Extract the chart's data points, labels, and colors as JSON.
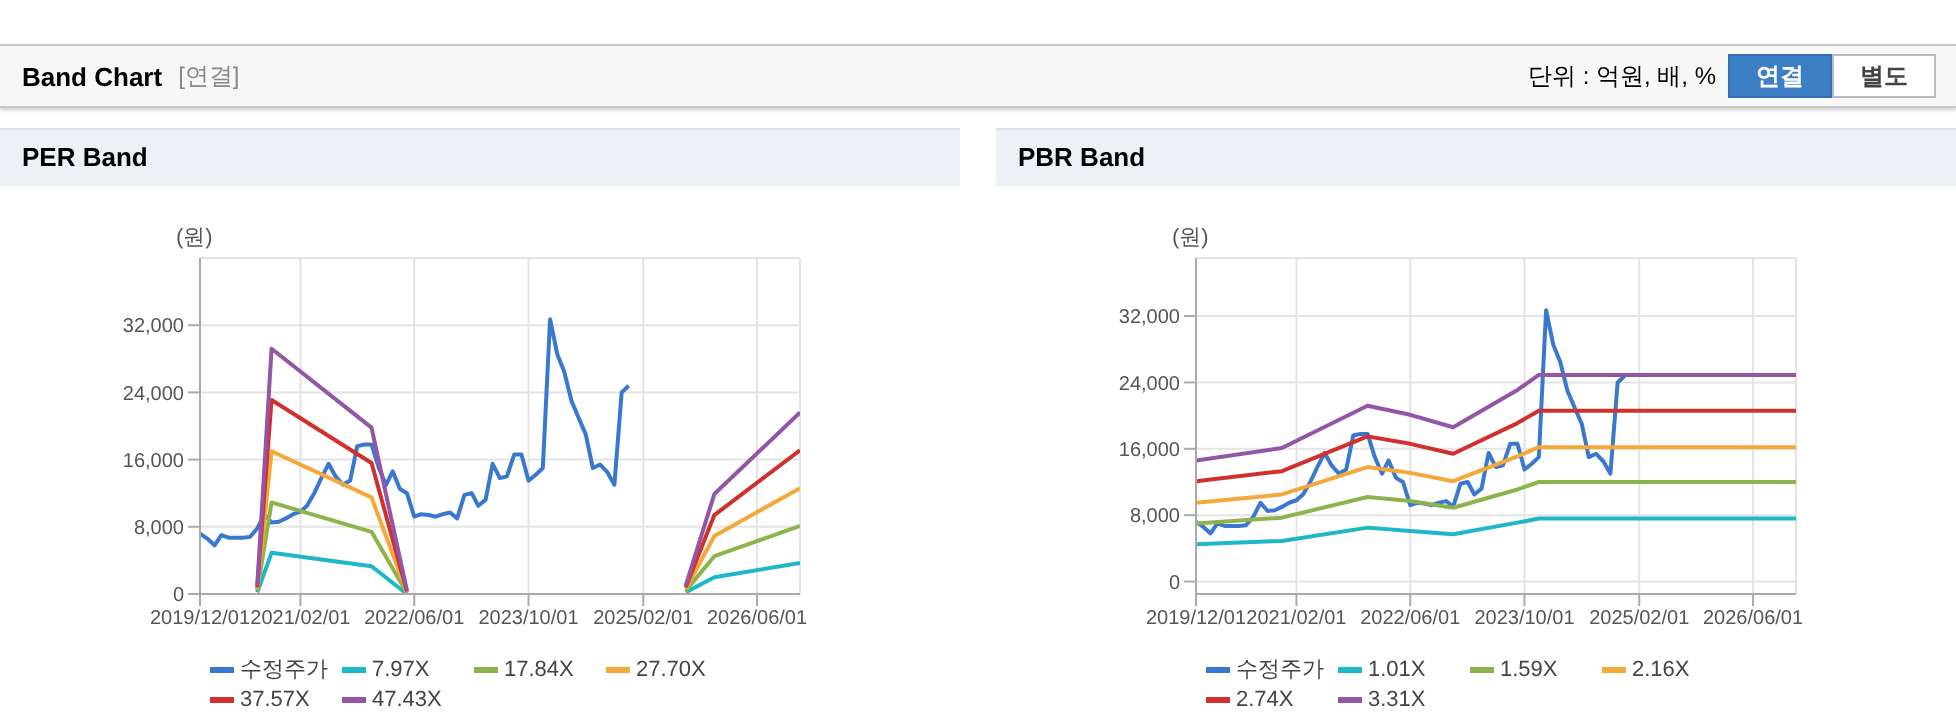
{
  "chart_data": [
    {
      "type": "other",
      "title": "Band Chart",
      "annotations": [
        "[연결]",
        "단위 : 억원, 배, %",
        "연결",
        "별도"
      ]
    },
    {
      "type": "line",
      "title": "PER Band",
      "ylabel": "(원)",
      "xlim": [
        "2019-12-01",
        "2026-12-01"
      ],
      "xticks": [
        {
          "value": "2019-12-01",
          "label": "2019/12/01"
        },
        {
          "value": "2021-02-01",
          "label": "2021/02/01"
        },
        {
          "value": "2022-06-01",
          "label": "2022/06/01"
        },
        {
          "value": "2023-10-01",
          "label": "2023/10/01"
        },
        {
          "value": "2025-02-01",
          "label": "2025/02/01"
        },
        {
          "value": "2026-06-01",
          "label": "2026/06/01"
        }
      ],
      "ylim": [
        0,
        40000
      ],
      "yticks": [
        0,
        {
          "value": 8000,
          "label": "8,000"
        },
        {
          "value": 16000,
          "label": "16,000"
        },
        {
          "value": 24000,
          "label": "24,000"
        },
        {
          "value": 32000,
          "label": "32,000"
        }
      ],
      "grid": true,
      "legend": "bottom",
      "marker": "none",
      "line_style": "solid",
      "x": [
        "2019-12-01",
        "2020-01-01",
        "2020-02-01",
        "2020-03-01",
        "2020-04-01",
        "2020-05-01",
        "2020-06-01",
        "2020-07-01",
        "2020-08-01",
        "2020-09-01",
        "2020-10-01",
        "2020-11-01",
        "2020-12-01",
        "2021-01-01",
        "2021-02-01",
        "2021-03-01",
        "2021-04-01",
        "2021-05-01",
        "2021-06-01",
        "2021-07-01",
        "2021-08-01",
        "2021-09-01",
        "2021-10-01",
        "2021-11-01",
        "2021-12-01",
        "2022-01-01",
        "2022-02-01",
        "2022-03-01",
        "2022-04-01",
        "2022-05-01",
        "2022-06-01",
        "2022-07-01",
        "2022-08-01",
        "2022-09-01",
        "2022-10-01",
        "2022-11-01",
        "2022-12-01",
        "2023-01-01",
        "2023-02-01",
        "2023-03-01",
        "2023-04-01",
        "2023-05-01",
        "2023-06-01",
        "2023-07-01",
        "2023-08-01",
        "2023-09-01",
        "2023-10-01",
        "2023-11-01",
        "2023-12-01",
        "2024-01-01",
        "2024-02-01",
        "2024-03-01",
        "2024-04-01",
        "2024-05-01",
        "2024-06-01",
        "2024-07-01",
        "2024-08-01",
        "2024-09-01",
        "2024-10-01",
        "2024-11-01",
        "2024-12-01"
      ],
      "series": [
        {
          "name": "수정주가",
          "color": "#3a78d0",
          "values": [
            7200,
            6600,
            5800,
            7000,
            6700,
            6700,
            6700,
            6800,
            7800,
            9500,
            8500,
            8600,
            9000,
            9500,
            9800,
            10500,
            12000,
            13800,
            15500,
            14000,
            13000,
            13500,
            17600,
            17800,
            17800,
            15000,
            13000,
            14600,
            12500,
            12000,
            9200,
            9500,
            9400,
            9200,
            9500,
            9700,
            9000,
            11800,
            12000,
            10500,
            11200,
            15500,
            13800,
            14000,
            16600,
            16600,
            13500,
            14200,
            15000,
            32700,
            28500,
            26500,
            23000,
            21000,
            19000,
            15000,
            15400,
            14500,
            13000,
            24000,
            24800
          ]
        },
        {
          "name": "7.97X",
          "color": "#1cb8c8",
          "x": [
            "2020-08-01",
            "2020-10-01",
            "2021-12-01",
            "2022-05-01",
            "2023-06-01",
            "2025-08-01",
            "2025-12-01",
            "2026-12-01"
          ],
          "values": [
            200,
            4900,
            3300,
            0,
            null,
            200,
            2000,
            3700
          ]
        },
        {
          "name": "17.84X",
          "color": "#8db44c",
          "x": [
            "2020-08-01",
            "2020-10-01",
            "2021-12-01",
            "2022-05-01",
            "2023-06-01",
            "2025-08-01",
            "2025-12-01",
            "2026-12-01"
          ],
          "values": [
            400,
            10900,
            7400,
            100,
            null,
            400,
            4500,
            8100
          ]
        },
        {
          "name": "27.70X",
          "color": "#f5a83a",
          "x": [
            "2020-08-01",
            "2020-10-01",
            "2021-12-01",
            "2022-05-01",
            "2023-06-01",
            "2025-08-01",
            "2025-12-01",
            "2026-12-01"
          ],
          "values": [
            600,
            17000,
            11500,
            200,
            null,
            600,
            6900,
            12600
          ]
        },
        {
          "name": "37.57X",
          "color": "#d0312d",
          "x": [
            "2020-08-01",
            "2020-10-01",
            "2021-12-01",
            "2022-05-01",
            "2023-06-01",
            "2025-08-01",
            "2025-12-01",
            "2026-12-01"
          ],
          "values": [
            800,
            23100,
            15600,
            300,
            null,
            800,
            9400,
            17100
          ]
        },
        {
          "name": "47.43X",
          "color": "#9355a5",
          "x": [
            "2020-08-01",
            "2020-10-01",
            "2021-12-01",
            "2022-05-01",
            "2023-06-01",
            "2025-08-01",
            "2025-12-01",
            "2026-12-01"
          ],
          "values": [
            1000,
            29200,
            19800,
            400,
            null,
            1000,
            11900,
            21600
          ]
        }
      ]
    },
    {
      "type": "line",
      "title": "PBR Band",
      "ylabel": "(원)",
      "xlim": [
        "2019-12-01",
        "2026-12-01"
      ],
      "xticks": [
        {
          "value": "2019-12-01",
          "label": "2019/12/01"
        },
        {
          "value": "2021-02-01",
          "label": "2021/02/01"
        },
        {
          "value": "2022-06-01",
          "label": "2022/06/01"
        },
        {
          "value": "2023-10-01",
          "label": "2023/10/01"
        },
        {
          "value": "2025-02-01",
          "label": "2025/02/01"
        },
        {
          "value": "2026-06-01",
          "label": "2026/06/01"
        }
      ],
      "ylim": [
        -1500,
        39000
      ],
      "yticks": [
        0,
        {
          "value": 8000,
          "label": "8,000"
        },
        {
          "value": 16000,
          "label": "16,000"
        },
        {
          "value": 24000,
          "label": "24,000"
        },
        {
          "value": 32000,
          "label": "32,000"
        }
      ],
      "grid": true,
      "legend": "bottom",
      "marker": "none",
      "line_style": "solid",
      "x": [
        "2019-12-01",
        "2020-01-01",
        "2020-02-01",
        "2020-03-01",
        "2020-04-01",
        "2020-05-01",
        "2020-06-01",
        "2020-07-01",
        "2020-08-01",
        "2020-09-01",
        "2020-10-01",
        "2020-11-01",
        "2020-12-01",
        "2021-01-01",
        "2021-02-01",
        "2021-03-01",
        "2021-04-01",
        "2021-05-01",
        "2021-06-01",
        "2021-07-01",
        "2021-08-01",
        "2021-09-01",
        "2021-10-01",
        "2021-11-01",
        "2021-12-01",
        "2022-01-01",
        "2022-02-01",
        "2022-03-01",
        "2022-04-01",
        "2022-05-01",
        "2022-06-01",
        "2022-07-01",
        "2022-08-01",
        "2022-09-01",
        "2022-10-01",
        "2022-11-01",
        "2022-12-01",
        "2023-01-01",
        "2023-02-01",
        "2023-03-01",
        "2023-04-01",
        "2023-05-01",
        "2023-06-01",
        "2023-07-01",
        "2023-08-01",
        "2023-09-01",
        "2023-10-01",
        "2023-11-01",
        "2023-12-01",
        "2024-01-01",
        "2024-02-01",
        "2024-03-01",
        "2024-04-01",
        "2024-05-01",
        "2024-06-01",
        "2024-07-01",
        "2024-08-01",
        "2024-09-01",
        "2024-10-01",
        "2024-11-01",
        "2024-12-01"
      ],
      "series": [
        {
          "name": "수정주가",
          "color": "#3a78d0",
          "values": [
            7200,
            6600,
            5800,
            7000,
            6700,
            6700,
            6700,
            6800,
            7800,
            9500,
            8500,
            8600,
            9000,
            9500,
            9800,
            10500,
            12000,
            13800,
            15500,
            14000,
            13000,
            13500,
            17600,
            17800,
            17800,
            15000,
            13000,
            14600,
            12500,
            12000,
            9200,
            9500,
            9400,
            9200,
            9500,
            9700,
            9000,
            11800,
            12000,
            10500,
            11200,
            15500,
            13800,
            14000,
            16600,
            16600,
            13500,
            14200,
            15000,
            32700,
            28500,
            26500,
            23000,
            21000,
            19000,
            15000,
            15400,
            14500,
            13000,
            24000,
            24800
          ]
        },
        {
          "name": "1.01X",
          "color": "#1cb8c8",
          "x": [
            "2019-12-01",
            "2020-12-01",
            "2021-12-01",
            "2022-06-01",
            "2022-12-01",
            "2023-09-01",
            "2023-12-01",
            "2026-12-01"
          ],
          "values": [
            4500,
            4900,
            6500,
            6100,
            5700,
            7100,
            7600,
            7600
          ]
        },
        {
          "name": "1.59X",
          "color": "#8db44c",
          "x": [
            "2019-12-01",
            "2020-12-01",
            "2021-12-01",
            "2022-06-01",
            "2022-12-01",
            "2023-09-01",
            "2023-12-01",
            "2026-12-01"
          ],
          "values": [
            7000,
            7700,
            10200,
            9700,
            8900,
            11100,
            12000,
            12000
          ]
        },
        {
          "name": "2.16X",
          "color": "#f5a83a",
          "x": [
            "2019-12-01",
            "2020-12-01",
            "2021-12-01",
            "2022-06-01",
            "2022-12-01",
            "2023-09-01",
            "2023-12-01",
            "2026-12-01"
          ],
          "values": [
            9500,
            10500,
            13800,
            13100,
            12100,
            15100,
            16200,
            16200
          ]
        },
        {
          "name": "2.74X",
          "color": "#d0312d",
          "x": [
            "2019-12-01",
            "2020-12-01",
            "2021-12-01",
            "2022-06-01",
            "2022-12-01",
            "2023-09-01",
            "2023-12-01",
            "2026-12-01"
          ],
          "values": [
            12100,
            13300,
            17500,
            16600,
            15400,
            19100,
            20600,
            20600
          ]
        },
        {
          "name": "3.31X",
          "color": "#9355a5",
          "x": [
            "2019-12-01",
            "2020-12-01",
            "2021-12-01",
            "2022-06-01",
            "2022-12-01",
            "2023-09-01",
            "2023-12-01",
            "2026-12-01"
          ],
          "values": [
            14600,
            16100,
            21200,
            20100,
            18600,
            23100,
            24900,
            24900
          ]
        }
      ]
    }
  ]
}
